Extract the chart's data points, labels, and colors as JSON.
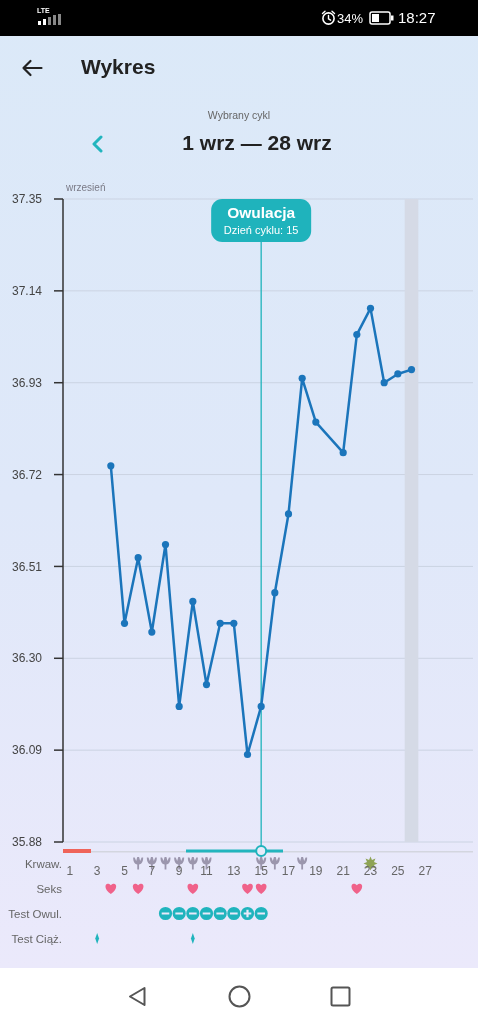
{
  "chart_data": [
    {
      "type": "line",
      "title": "Wykres",
      "subtitle": "Wybrany cykl",
      "annotations": [
        "18:27",
        "34%",
        "LTE",
        "1 wrz — 28 wrz",
        "wrzesień",
        "Dzień cyklu: 15"
      ],
      "x": [
        4,
        5,
        6,
        7,
        8,
        9,
        10,
        11,
        12,
        13,
        14,
        15,
        16,
        17,
        18,
        19,
        21,
        22,
        23,
        24,
        25,
        26
      ],
      "values": [
        36.74,
        36.38,
        36.53,
        36.36,
        36.56,
        36.19,
        36.43,
        36.24,
        36.38,
        36.38,
        36.08,
        36.19,
        36.45,
        36.63,
        36.94,
        36.84,
        36.77,
        37.04,
        37.1,
        36.93,
        36.95,
        36.96
      ],
      "color": "#1b75bb",
      "marker": "circle",
      "xlim": [
        0.5,
        30.5
      ],
      "ylim": [
        35.88,
        37.35
      ],
      "yticks": [
        35.88,
        36.09,
        {
          "value": 36.3,
          "label": "36.30"
        },
        36.51,
        36.72,
        36.93,
        37.14,
        37.35
      ],
      "grid": "y",
      "tick_labels": "y",
      "ref_lines": [
        {
          "axis": "x",
          "value": 15,
          "label": "Owulacja",
          "color": "#1fb3bc"
        }
      ],
      "bands": [
        {
          "axis": "x",
          "from": 25.5,
          "to": 26.5,
          "color": "#d5dae6"
        }
      ]
    },
    {
      "type": "scatter",
      "orientation": "horizontal",
      "categories": [
        "Krwaw.",
        "Seks",
        "Test Owul.",
        "Test Ciąż."
      ],
      "xlim": [
        0.5,
        30.5
      ],
      "xticks": [
        1,
        3,
        5,
        7,
        9,
        11,
        13,
        15,
        17,
        19,
        21,
        23,
        25,
        27
      ],
      "series": [
        {
          "color": "#9b96ad",
          "x": [
            "Krwaw.",
            "Krwaw.",
            "Krwaw.",
            "Krwaw.",
            "Krwaw.",
            "Krwaw.",
            "Krwaw.",
            "Krwaw.",
            "Krwaw."
          ],
          "values": [
            6,
            7,
            8,
            9,
            10,
            11,
            15,
            16,
            18
          ]
        },
        {
          "color": "#8ea355",
          "x": [
            "Krwaw."
          ],
          "values": [
            23
          ]
        },
        {
          "color": "#f0628a",
          "x": [
            "Seks",
            "Seks",
            "Seks",
            "Seks",
            "Seks",
            "Seks"
          ],
          "values": [
            4,
            6,
            10,
            14,
            15,
            22
          ]
        },
        {
          "color": "#20b4bd",
          "x": [
            "Test Owul.",
            "Test Owul.",
            "Test Owul.",
            "Test Owul.",
            "Test Owul.",
            "Test Owul.",
            "Test Owul."
          ],
          "values": [
            8,
            9,
            10,
            11,
            12,
            13,
            15
          ]
        },
        {
          "color": "#20b4bd",
          "x": [
            "Test Owul."
          ],
          "values": [
            14
          ]
        },
        {
          "color": "#20b4bd",
          "x": [
            "Test Ciąż.",
            "Test Ciąż."
          ],
          "values": [
            3,
            10
          ]
        }
      ]
    }
  ]
}
